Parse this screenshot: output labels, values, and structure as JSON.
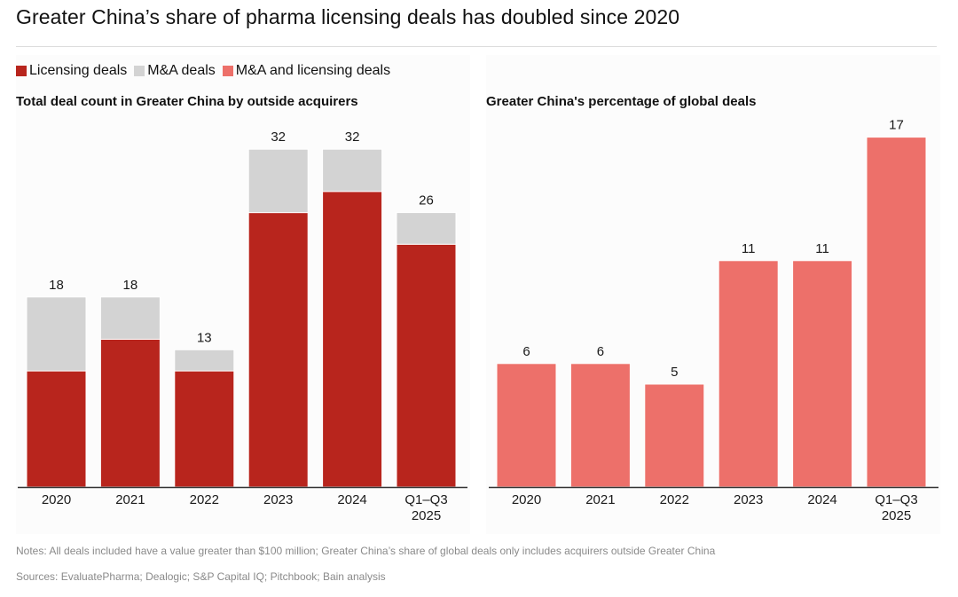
{
  "title": "Greater China’s share of pharma licensing deals has doubled since 2020",
  "legend": [
    {
      "label": "Licensing deals",
      "color": "#b8251d"
    },
    {
      "label": "M&A deals",
      "color": "#d3d3d3"
    },
    {
      "label": "M&A and licensing deals",
      "color": "#ed706a"
    }
  ],
  "notes": "Notes: All deals included have a value greater than $100 million; Greater China’s share of global deals only includes acquirers outside Greater China",
  "sources": "Sources: EvaluatePharma; Dealogic; S&P Capital IQ; Pitchbook; Bain analysis",
  "chart_data": [
    {
      "type": "bar",
      "stacked": true,
      "title": "Total deal count in Greater China by outside acquirers",
      "xlabel": "",
      "ylabel": "",
      "categories": [
        "2020",
        "2021",
        "2022",
        "2023",
        "2024",
        "Q1–Q3 2025"
      ],
      "series": [
        {
          "name": "Licensing deals",
          "color": "#b8251d",
          "values": [
            11,
            14,
            11,
            26,
            28,
            23
          ]
        },
        {
          "name": "M&A deals",
          "color": "#d3d3d3",
          "values": [
            7,
            4,
            2,
            6,
            4,
            3
          ]
        }
      ],
      "totals": [
        18,
        18,
        13,
        32,
        32,
        26
      ],
      "ylim": [
        0,
        36
      ],
      "grid": false,
      "legend": "top-left"
    },
    {
      "type": "bar",
      "title": "Greater China's percentage of global deals",
      "xlabel": "",
      "ylabel": "",
      "categories": [
        "2020",
        "2021",
        "2022",
        "2023",
        "2024",
        "Q1–Q3 2025"
      ],
      "series": [
        {
          "name": "M&A and licensing deals",
          "color": "#ed706a",
          "values": [
            6,
            6,
            5,
            11,
            11,
            17
          ]
        }
      ],
      "ylim": [
        0,
        18
      ],
      "grid": false
    }
  ]
}
